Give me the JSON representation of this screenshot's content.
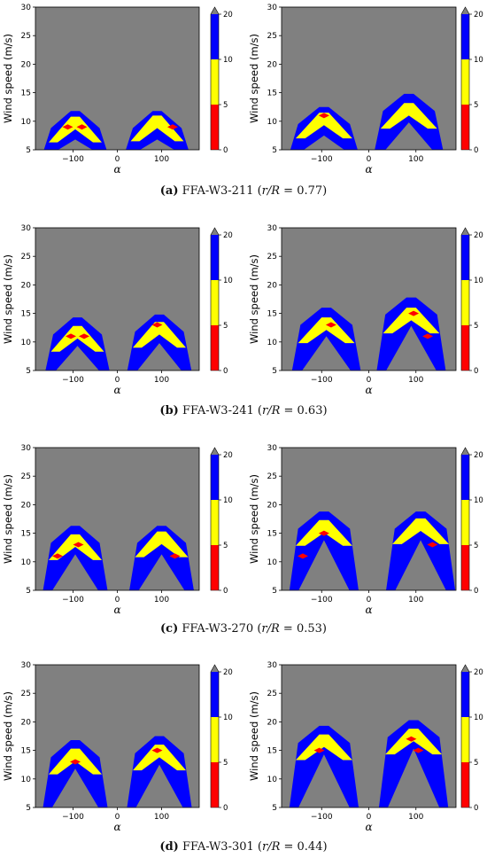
{
  "figure": {
    "ylabel": "Wind speed (m/s)",
    "xlabel": "α",
    "x_ticks": [
      "-100",
      "0",
      "100"
    ],
    "y_ticks": [
      "5",
      "10",
      "15",
      "20",
      "25",
      "30"
    ],
    "colorbar_ticks": [
      "0",
      "5",
      "10",
      "20"
    ],
    "colors": {
      "background": "#808080",
      "level_0_5": "#ff0000",
      "level_5_10": "#ffff00",
      "level_10_20": "#0000ff",
      "over": "#808080"
    }
  },
  "captions": [
    {
      "letter": "(a)",
      "label": " FFA-W3-211 (",
      "ratio": "r/R",
      "value": " = 0.77)"
    },
    {
      "letter": "(b)",
      "label": " FFA-W3-241 (",
      "ratio": "r/R",
      "value": " = 0.63)"
    },
    {
      "letter": "(c)",
      "label": " FFA-W3-270 (",
      "ratio": "r/R",
      "value": " = 0.53)"
    },
    {
      "letter": "(d)",
      "label": " FFA-W3-301 (",
      "ratio": "r/R",
      "value": " = 0.44)"
    }
  ],
  "chart_data": [
    {
      "type": "heatmap",
      "panel": "a-left",
      "xlim": [
        -185,
        185
      ],
      "ylim": [
        5,
        30
      ],
      "levels": [
        0,
        5,
        10,
        20
      ],
      "regions": [
        {
          "alpha_center": -95,
          "blue_peak": 11.8,
          "yellow_peak": 10.8,
          "red_centers": [
            [
              -112,
              9
            ],
            [
              -80,
              9
            ]
          ]
        },
        {
          "alpha_center": 90,
          "blue_peak": 11.8,
          "yellow_peak": 11.0,
          "red_centers": [
            [
              125,
              9
            ]
          ]
        }
      ]
    },
    {
      "type": "heatmap",
      "panel": "a-right",
      "xlim": [
        -185,
        185
      ],
      "ylim": [
        5,
        30
      ],
      "levels": [
        0,
        5,
        10,
        20
      ],
      "regions": [
        {
          "alpha_center": -95,
          "blue_peak": 12.5,
          "yellow_peak": 11.5,
          "red_centers": [
            [
              -95,
              11
            ]
          ]
        },
        {
          "alpha_center": 85,
          "blue_peak": 14.8,
          "yellow_peak": 13.2,
          "red_centers": []
        }
      ]
    },
    {
      "type": "heatmap",
      "panel": "b-left",
      "xlim": [
        -185,
        185
      ],
      "ylim": [
        5,
        30
      ],
      "levels": [
        0,
        5,
        10,
        20
      ],
      "regions": [
        {
          "alpha_center": -90,
          "blue_peak": 14.3,
          "yellow_peak": 12.8,
          "red_centers": [
            [
              -105,
              11
            ],
            [
              -75,
              11
            ]
          ]
        },
        {
          "alpha_center": 95,
          "blue_peak": 14.8,
          "yellow_peak": 13.5,
          "red_centers": [
            [
              90,
              13
            ]
          ]
        }
      ]
    },
    {
      "type": "heatmap",
      "panel": "b-right",
      "xlim": [
        -185,
        185
      ],
      "ylim": [
        5,
        30
      ],
      "levels": [
        0,
        5,
        10,
        20
      ],
      "regions": [
        {
          "alpha_center": -90,
          "blue_peak": 16.0,
          "yellow_peak": 14.3,
          "red_centers": [
            [
              -80,
              13
            ]
          ]
        },
        {
          "alpha_center": 90,
          "blue_peak": 17.8,
          "yellow_peak": 16.0,
          "red_centers": [
            [
              95,
              15
            ],
            [
              125,
              11
            ]
          ]
        }
      ]
    },
    {
      "type": "heatmap",
      "panel": "c-left",
      "xlim": [
        -185,
        185
      ],
      "ylim": [
        5,
        30
      ],
      "levels": [
        0,
        5,
        10,
        20
      ],
      "regions": [
        {
          "alpha_center": -95,
          "blue_peak": 16.3,
          "yellow_peak": 14.8,
          "red_centers": [
            [
              -88,
              13
            ],
            [
              -135,
              11
            ]
          ]
        },
        {
          "alpha_center": 100,
          "blue_peak": 16.3,
          "yellow_peak": 15.3,
          "red_centers": [
            [
              130,
              11
            ]
          ]
        }
      ]
    },
    {
      "type": "heatmap",
      "panel": "c-right",
      "xlim": [
        -185,
        185
      ],
      "ylim": [
        5,
        30
      ],
      "levels": [
        0,
        5,
        10,
        20
      ],
      "regions": [
        {
          "alpha_center": -95,
          "blue_peak": 18.8,
          "yellow_peak": 17.3,
          "red_centers": [
            [
              -95,
              15
            ],
            [
              -140,
              11
            ]
          ]
        },
        {
          "alpha_center": 110,
          "blue_peak": 18.8,
          "yellow_peak": 17.6,
          "red_centers": [
            [
              135,
              13
            ]
          ]
        }
      ]
    },
    {
      "type": "heatmap",
      "panel": "d-left",
      "xlim": [
        -185,
        185
      ],
      "ylim": [
        5,
        30
      ],
      "levels": [
        0,
        5,
        10,
        20
      ],
      "regions": [
        {
          "alpha_center": -95,
          "blue_peak": 16.8,
          "yellow_peak": 15.3,
          "red_centers": [
            [
              -95,
              13
            ]
          ]
        },
        {
          "alpha_center": 95,
          "blue_peak": 17.5,
          "yellow_peak": 16.0,
          "red_centers": [
            [
              90,
              15
            ]
          ]
        }
      ]
    },
    {
      "type": "heatmap",
      "panel": "d-right",
      "xlim": [
        -185,
        185
      ],
      "ylim": [
        5,
        30
      ],
      "levels": [
        0,
        5,
        10,
        20
      ],
      "regions": [
        {
          "alpha_center": -95,
          "blue_peak": 19.3,
          "yellow_peak": 17.8,
          "red_centers": [
            [
              -105,
              15
            ]
          ]
        },
        {
          "alpha_center": 95,
          "blue_peak": 20.3,
          "yellow_peak": 18.8,
          "red_centers": [
            [
              90,
              17
            ],
            [
              105,
              15
            ]
          ]
        }
      ]
    }
  ]
}
